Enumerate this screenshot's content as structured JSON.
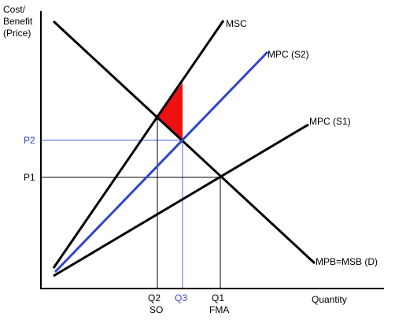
{
  "axes": {
    "y_label_lines": [
      "Cost/",
      "Benefit",
      "(Price)"
    ],
    "x_label": "Quantity"
  },
  "curves": {
    "msc": "MSC",
    "mpc_s2": "MPC (S2)",
    "mpc_s1": "MPC (S1)",
    "mpb": "MPB=MSB (D)"
  },
  "prices": {
    "p2": "P2",
    "p1": "P1"
  },
  "quantities": {
    "q2": "Q2",
    "q2_sub": "SO",
    "q3": "Q3",
    "q1": "Q1",
    "q1_sub": "FMA"
  },
  "colors": {
    "black": "#000000",
    "blue": "#3344cc",
    "guide_blue": "#5566dd",
    "triangle": "#ee1111"
  }
}
